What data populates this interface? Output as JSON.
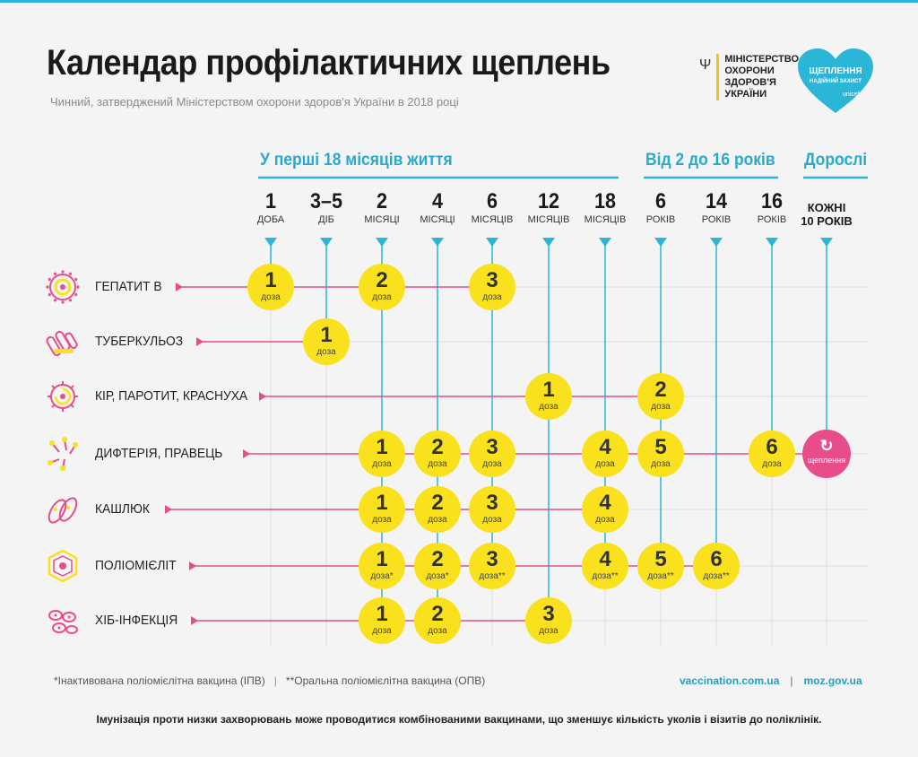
{
  "header": {
    "title": "Календар профілактичних щеплень",
    "subtitle": "Чинний, затверджений Міністерством охорони здоров'я України в 2018 році",
    "ministry": "Міністерство охорони здоров'я України",
    "heart_title": "ЩЕПЛЕННЯ",
    "heart_sub": "НАДІЙНИЙ ЗАХИСТ",
    "heart_brand": "unicef",
    "accent_color": "#2bb5d6"
  },
  "groups": [
    {
      "label": "У перші 18 місяців життя"
    },
    {
      "label": "Від 2 до 16 років"
    },
    {
      "label": "Дорослі"
    }
  ],
  "columns": [
    {
      "num": "1",
      "unit": "доба"
    },
    {
      "num": "3–5",
      "unit": "діб"
    },
    {
      "num": "2",
      "unit": "місяці"
    },
    {
      "num": "4",
      "unit": "місяці"
    },
    {
      "num": "6",
      "unit": "місяців"
    },
    {
      "num": "12",
      "unit": "місяців"
    },
    {
      "num": "18",
      "unit": "місяців"
    },
    {
      "num": "6",
      "unit": "років"
    },
    {
      "num": "14",
      "unit": "років"
    },
    {
      "num": "16",
      "unit": "років"
    },
    {
      "num": "",
      "unit": "",
      "adult": "кожні 10 років"
    }
  ],
  "dose_word": "доза",
  "booster_word": "щеплення",
  "diseases": [
    {
      "name": "Гепатит В",
      "icon": "hepatitis-virus-icon",
      "doses": [
        {
          "col": 0,
          "n": "1",
          "mark": ""
        },
        {
          "col": 2,
          "n": "2",
          "mark": ""
        },
        {
          "col": 4,
          "n": "3",
          "mark": ""
        }
      ]
    },
    {
      "name": "Туберкульоз",
      "icon": "tuberculosis-bacteria-icon",
      "doses": [
        {
          "col": 1,
          "n": "1",
          "mark": ""
        }
      ]
    },
    {
      "name": "Кір, паротит, краснуха",
      "icon": "measles-virus-icon",
      "doses": [
        {
          "col": 5,
          "n": "1",
          "mark": ""
        },
        {
          "col": 7,
          "n": "2",
          "mark": ""
        }
      ]
    },
    {
      "name": "Дифтерія, правець",
      "icon": "diphtheria-bacteria-icon",
      "doses": [
        {
          "col": 2,
          "n": "1",
          "mark": ""
        },
        {
          "col": 3,
          "n": "2",
          "mark": ""
        },
        {
          "col": 4,
          "n": "3",
          "mark": ""
        },
        {
          "col": 6,
          "n": "4",
          "mark": ""
        },
        {
          "col": 7,
          "n": "5",
          "mark": ""
        },
        {
          "col": 9,
          "n": "6",
          "mark": ""
        }
      ],
      "booster_col": 10
    },
    {
      "name": "Кашлюк",
      "icon": "pertussis-bacteria-icon",
      "doses": [
        {
          "col": 2,
          "n": "1",
          "mark": ""
        },
        {
          "col": 3,
          "n": "2",
          "mark": ""
        },
        {
          "col": 4,
          "n": "3",
          "mark": ""
        },
        {
          "col": 6,
          "n": "4",
          "mark": ""
        }
      ]
    },
    {
      "name": "Поліомієліт",
      "icon": "polio-virus-icon",
      "doses": [
        {
          "col": 2,
          "n": "1",
          "mark": "*"
        },
        {
          "col": 3,
          "n": "2",
          "mark": "*"
        },
        {
          "col": 4,
          "n": "3",
          "mark": "**"
        },
        {
          "col": 6,
          "n": "4",
          "mark": "**"
        },
        {
          "col": 7,
          "n": "5",
          "mark": "**"
        },
        {
          "col": 8,
          "n": "6",
          "mark": "**"
        }
      ]
    },
    {
      "name": "ХІБ-інфекція",
      "icon": "hib-bacteria-icon",
      "doses": [
        {
          "col": 2,
          "n": "1",
          "mark": ""
        },
        {
          "col": 3,
          "n": "2",
          "mark": ""
        },
        {
          "col": 5,
          "n": "3",
          "mark": ""
        }
      ]
    }
  ],
  "footnotes": {
    "ipv": "*Інактивована поліомієлітна вакцина (ІПВ)",
    "opv": "**Оральна поліомієлітна вакцина (ОПВ)"
  },
  "links": {
    "site1": "vaccination.com.ua",
    "site2": "moz.gov.ua"
  },
  "bottom_note": "Імунізація проти низки захворювань може проводитися комбінованими вакцинами, що зменшує кількість уколів і візитів до поліклінік.",
  "colors": {
    "yellow": "#f9e11e",
    "pink": "#e84c8b",
    "cyan": "#2bb5d6",
    "grid": "#dddddd"
  }
}
